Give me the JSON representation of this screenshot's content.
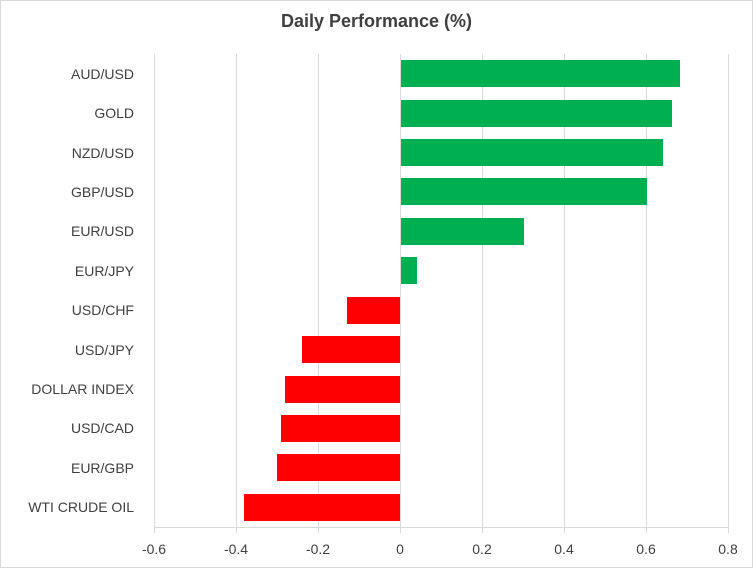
{
  "chart_data": {
    "type": "bar",
    "orientation": "horizontal",
    "title": "Daily Performance (%)",
    "categories": [
      "AUD/USD",
      "GOLD",
      "NZD/USD",
      "GBP/USD",
      "EUR/USD",
      "EUR/JPY",
      "USD/CHF",
      "USD/JPY",
      "DOLLAR INDEX",
      "USD/CAD",
      "EUR/GBP",
      "WTI CRUDE OIL"
    ],
    "values": [
      0.68,
      0.66,
      0.64,
      0.6,
      0.3,
      0.04,
      -0.13,
      -0.24,
      -0.28,
      -0.29,
      -0.3,
      -0.38
    ],
    "x_ticks": [
      "-0.6",
      "-0.4",
      "-0.2",
      "0",
      "0.2",
      "0.4",
      "0.6",
      "0.8"
    ],
    "x_tick_values": [
      -0.6,
      -0.4,
      -0.2,
      0,
      0.2,
      0.4,
      0.6,
      0.8
    ],
    "xlim": [
      -0.6,
      0.8
    ],
    "xlabel": "",
    "ylabel": "",
    "grid": "vertical",
    "legend": "none",
    "colors": {
      "positive_bar": "#00B050",
      "negative_bar": "#FF0000",
      "gridline": "#D9D9D9",
      "border": "#D9D9D9",
      "title_text": "#404040",
      "axis_text": "#404040"
    }
  }
}
